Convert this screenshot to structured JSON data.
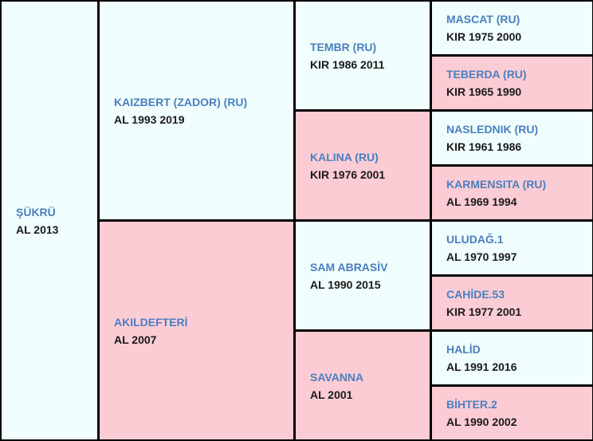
{
  "pedigree": {
    "subject": {
      "name": "ŞÜKRÜ",
      "info": "AL 2013"
    },
    "sire": {
      "name": "KAIZBERT (ZADOR) (RU)",
      "info": "AL 1993 2019"
    },
    "dam": {
      "name": "AKILDEFTERİ",
      "info": "AL 2007"
    },
    "sire_sire": {
      "name": "TEMBR (RU)",
      "info": "KIR 1986 2011"
    },
    "sire_dam": {
      "name": "KALINA (RU)",
      "info": "KIR 1976 2001"
    },
    "dam_sire": {
      "name": "SAM ABRASİV",
      "info": "AL 1990 2015"
    },
    "dam_dam": {
      "name": "SAVANNA",
      "info": "AL 2001"
    },
    "gen3": [
      {
        "name": "MASCAT (RU)",
        "info": "KIR 1975 2000"
      },
      {
        "name": "TEBERDA (RU)",
        "info": "KIR 1965 1990"
      },
      {
        "name": "NASLEDNIK (RU)",
        "info": "KIR 1961 1986"
      },
      {
        "name": "KARMENSITA (RU)",
        "info": "AL 1969 1994"
      },
      {
        "name": "ULUDAĞ.1",
        "info": "AL 1970 1997"
      },
      {
        "name": "CAHİDE.53",
        "info": "KIR 1977 2001"
      },
      {
        "name": "HALİD",
        "info": "AL 1991 2016"
      },
      {
        "name": "BİHTER.2",
        "info": "AL 1990 2002"
      }
    ]
  },
  "colors": {
    "male_bg": "#f0fefe",
    "female_bg": "#fcccd5",
    "name_link": "#4a7fbf",
    "info_text": "#1a1a1a",
    "border": "#000000"
  }
}
